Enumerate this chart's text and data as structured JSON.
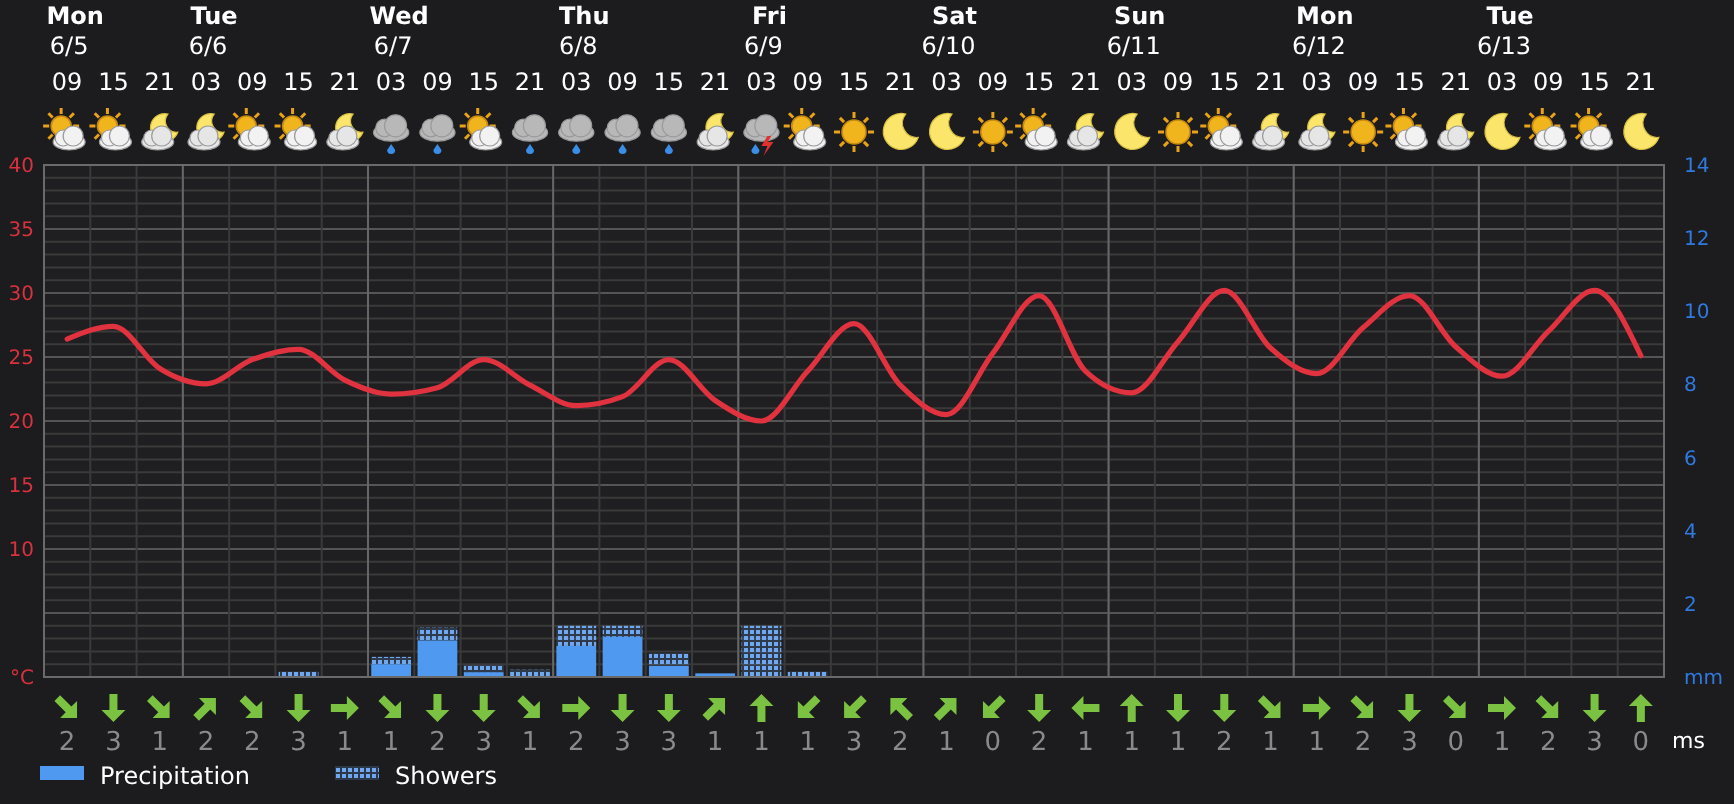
{
  "chart_data": [
    {
      "type": "bar",
      "categories": [
        "09",
        "15",
        "21",
        "03",
        "09",
        "15",
        "21",
        "03",
        "09",
        "15",
        "21",
        "03",
        "09",
        "15",
        "21",
        "03",
        "09",
        "15",
        "21",
        "03",
        "09",
        "15",
        "21",
        "03",
        "09",
        "15",
        "21",
        "03",
        "09",
        "15",
        "21",
        "03",
        "09",
        "15",
        "21"
      ],
      "annotations": [
        "Mon",
        "6/5",
        "Tue",
        "6/6",
        "Wed",
        "6/7",
        "Thu",
        "6/8",
        "Fri",
        "6/9",
        "Sat",
        "6/10",
        "Sun",
        "6/11",
        "Mon",
        "6/12",
        "Tue",
        "6/13"
      ],
      "ylim": [
        0,
        40
      ],
      "yticks": [
        {
          "value": 0,
          "label": "°C"
        },
        10,
        15,
        20,
        25,
        30,
        35,
        40
      ],
      "y2lim": [
        0,
        14
      ],
      "y2ticks": [
        {
          "value": 0,
          "label": "mm"
        },
        2,
        4,
        6,
        8,
        10,
        12,
        14
      ],
      "stacked": true,
      "grid": true,
      "legend": "bottom left",
      "series": [
        {
          "name": "Precipitation",
          "type": "bar",
          "axis": "y2",
          "color": "#4f9af0",
          "values": [
            0,
            0,
            0,
            0,
            0,
            0,
            0,
            0.35,
            1.0,
            0.13,
            0,
            0.85,
            1.1,
            0.3,
            0.1,
            0,
            0,
            0,
            0,
            0,
            0,
            0,
            0,
            0,
            0,
            0,
            0,
            0,
            0,
            0,
            0,
            0,
            0,
            0,
            0
          ]
        },
        {
          "name": "Showers",
          "type": "bar",
          "axis": "y2",
          "color": "#6fa8f0",
          "values": [
            0,
            0,
            0,
            0,
            0,
            0.15,
            0,
            0.2,
            0.35,
            0.2,
            0.2,
            0.55,
            0.3,
            0.35,
            0,
            1.4,
            0.15,
            0,
            0,
            0,
            0,
            0,
            0,
            0,
            0,
            0,
            0,
            0,
            0,
            0,
            0,
            0,
            0,
            0,
            0
          ]
        },
        {
          "type": "line",
          "axis": "y",
          "color": "#e0323f",
          "values": [
            26.4,
            27.4,
            24.1,
            22.9,
            24.8,
            25.6,
            23.2,
            22.1,
            22.6,
            24.8,
            22.8,
            21.2,
            21.9,
            24.8,
            21.6,
            20.0,
            23.9,
            27.6,
            22.8,
            20.5,
            25.3,
            29.8,
            23.9,
            22.2,
            26.2,
            30.2,
            25.7,
            23.7,
            27.3,
            29.8,
            25.8,
            23.5,
            27.0,
            30.2,
            25.1
          ]
        }
      ]
    },
    {
      "type": "other",
      "categories": [
        null,
        null,
        null,
        null,
        null,
        null,
        null,
        null,
        null,
        null,
        null,
        null,
        null,
        null,
        null,
        null,
        null,
        null,
        null,
        null,
        null,
        null,
        null,
        null,
        null,
        null,
        null,
        null,
        null,
        null,
        null,
        null,
        null,
        null,
        null
      ],
      "ylabel": "ms",
      "data_labels": true,
      "values": [
        2,
        3,
        1,
        2,
        2,
        3,
        1,
        1,
        2,
        3,
        1,
        2,
        3,
        3,
        1,
        1,
        1,
        3,
        2,
        1,
        0,
        2,
        1,
        1,
        1,
        2,
        1,
        1,
        2,
        3,
        0,
        1,
        2,
        3,
        0
      ]
    }
  ]
}
